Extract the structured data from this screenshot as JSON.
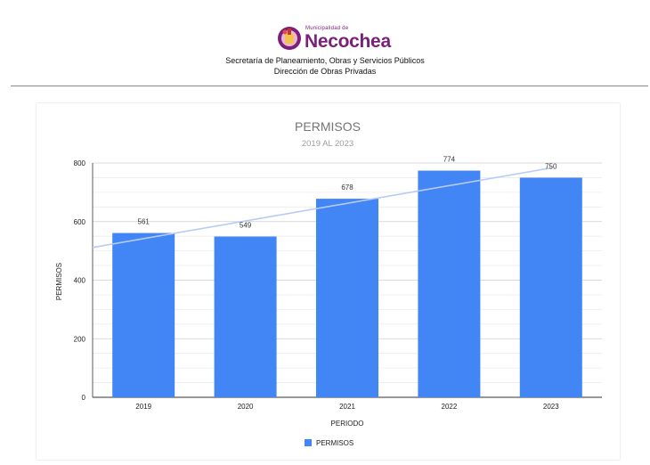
{
  "header": {
    "logo_small": "Municipalidad de",
    "logo_name": "Necochea",
    "department": "Secretaría de Planeamiento, Obras y Servicios Públicos",
    "office": "Dirección de Obras Privadas"
  },
  "colors": {
    "bar": "#4285f4",
    "trendline": "#b7cbf5",
    "logo": "#7a1f7a"
  },
  "chart_data": {
    "type": "bar",
    "title": "PERMISOS",
    "subtitle": "2019 AL 2023",
    "xlabel": "PERIODO",
    "ylabel": "PERMISOS",
    "categories": [
      "2019",
      "2020",
      "2021",
      "2022",
      "2023"
    ],
    "series": [
      {
        "name": "PERMISOS",
        "values": [
          561,
          549,
          678,
          774,
          750
        ]
      }
    ],
    "data_labels": [
      "561",
      "549",
      "678",
      "774",
      "750"
    ],
    "ylim": [
      0,
      800
    ],
    "y_ticks": [
      "0",
      "200",
      "400",
      "600",
      "800"
    ],
    "grid": true,
    "trendline": "linear",
    "legend_position": "bottom"
  }
}
